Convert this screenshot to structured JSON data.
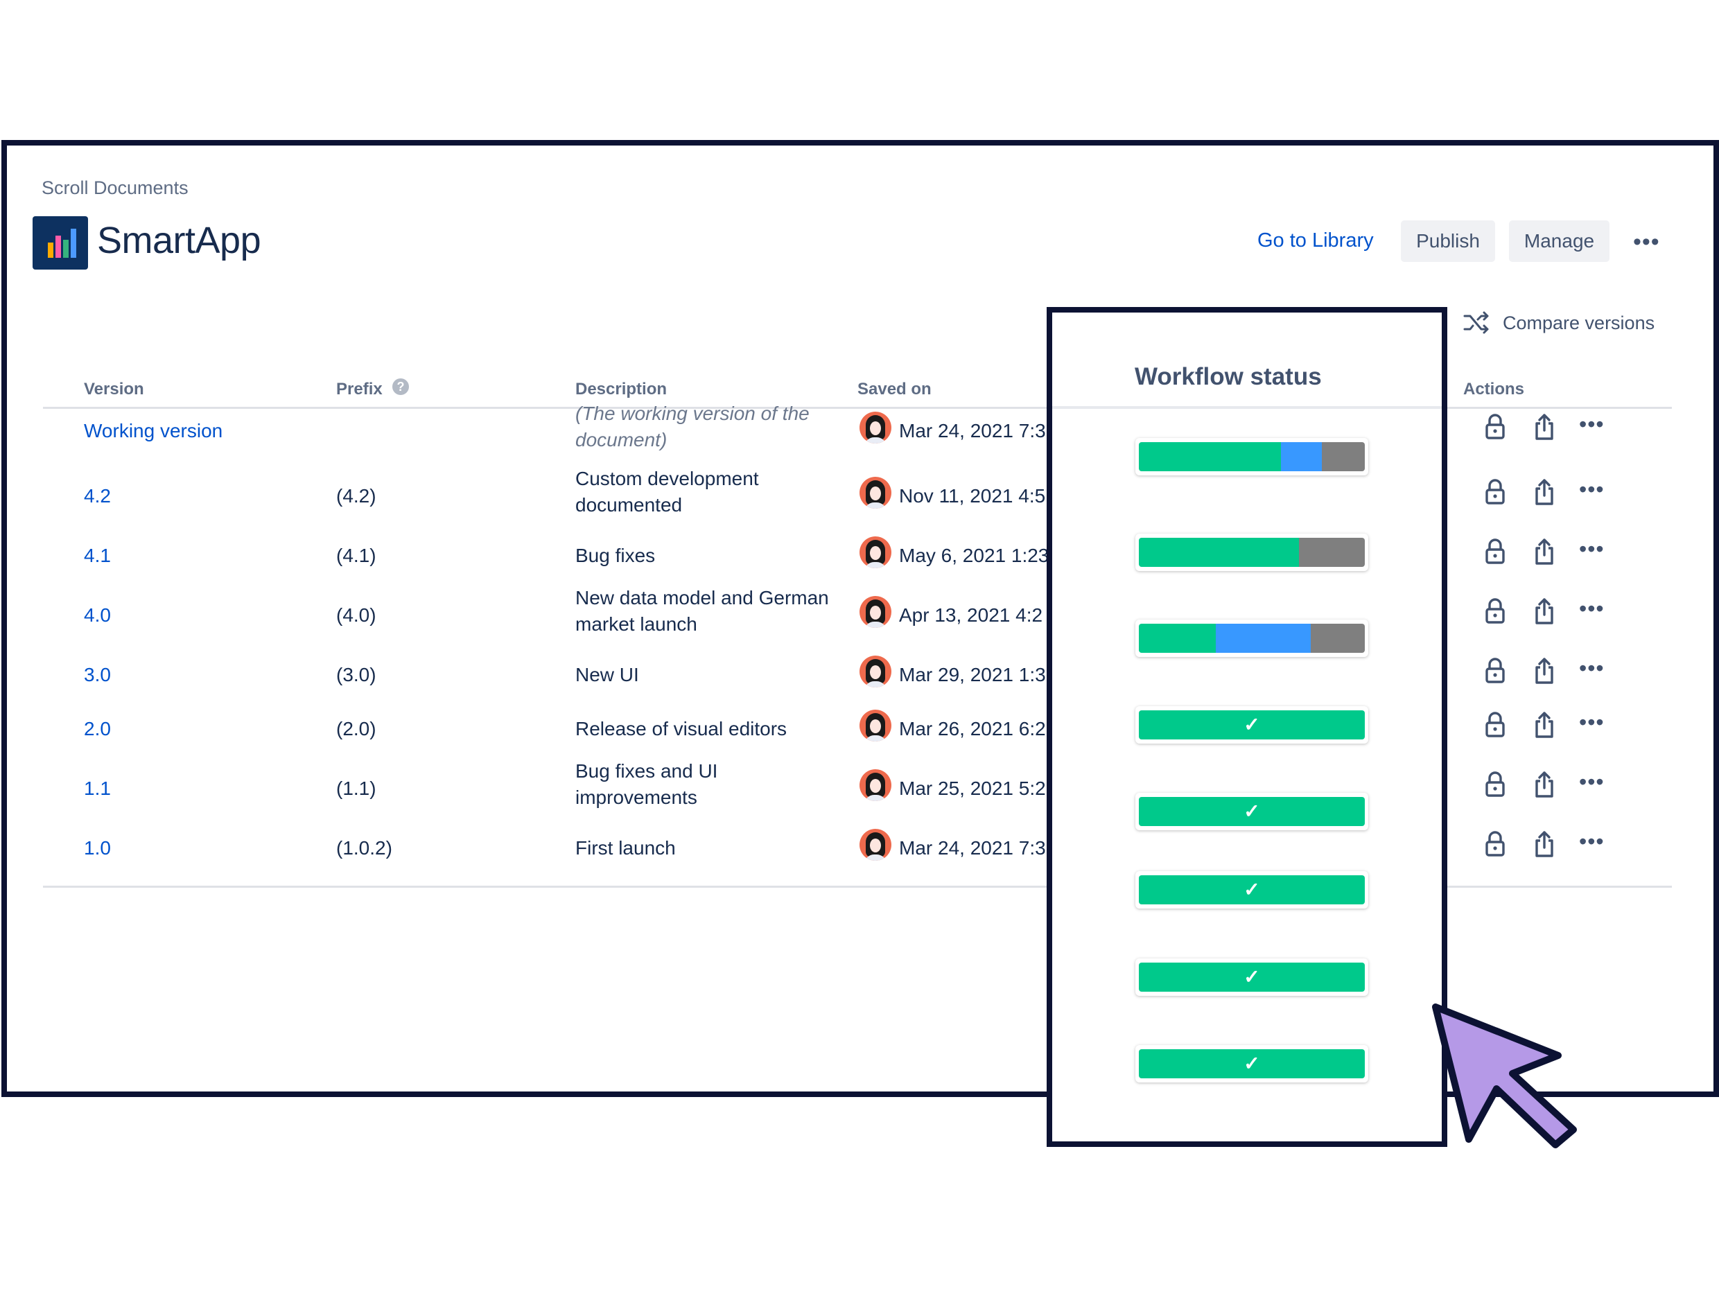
{
  "breadcrumb": "Scroll Documents",
  "app": {
    "title": "SmartApp"
  },
  "header_actions": {
    "go_to_library": "Go to Library",
    "publish": "Publish",
    "manage": "Manage",
    "more": "•••"
  },
  "compare_versions": "Compare versions",
  "table": {
    "headers": {
      "version": "Version",
      "prefix": "Prefix",
      "description": "Description",
      "saved_on": "Saved on",
      "actions": "Actions"
    },
    "rows": [
      {
        "version": "Working version",
        "prefix": "",
        "description": "(The working version of the document)",
        "saved_on": "Mar 24, 2021 7:3"
      },
      {
        "version": "4.2",
        "prefix": "(4.2)",
        "description": "Custom development documented",
        "saved_on": "Nov 11, 2021 4:5"
      },
      {
        "version": "4.1",
        "prefix": "(4.1)",
        "description": "Bug fixes",
        "saved_on": "May 6, 2021 1:23"
      },
      {
        "version": "4.0",
        "prefix": "(4.0)",
        "description": "New data model and German market launch",
        "saved_on": "Apr 13, 2021 4:2"
      },
      {
        "version": "3.0",
        "prefix": "(3.0)",
        "description": "New UI",
        "saved_on": "Mar 29, 2021 1:3"
      },
      {
        "version": "2.0",
        "prefix": "(2.0)",
        "description": "Release of visual editors",
        "saved_on": "Mar 26, 2021 6:2"
      },
      {
        "version": "1.1",
        "prefix": "(1.1)",
        "description": "Bug fixes and UI improvements",
        "saved_on": "Mar 25, 2021 5:2"
      },
      {
        "version": "1.0",
        "prefix": "(1.0.2)",
        "description": "First launch",
        "saved_on": "Mar 24, 2021 7:3"
      }
    ]
  },
  "workflow": {
    "title": "Workflow status",
    "colors": {
      "green": "#00c98b",
      "blue": "#3898ff",
      "gray": "#7f7f7f"
    },
    "bars": [
      {
        "done": 0.63,
        "in_progress": 0.18,
        "todo": 0.19
      },
      {
        "done": 0.71,
        "in_progress": 0.0,
        "todo": 0.29
      },
      {
        "done": 0.34,
        "in_progress": 0.42,
        "todo": 0.24
      },
      {
        "done": 1.0,
        "in_progress": 0.0,
        "todo": 0.0,
        "check": "✓"
      },
      {
        "done": 1.0,
        "in_progress": 0.0,
        "todo": 0.0,
        "check": "✓"
      },
      {
        "done": 1.0,
        "in_progress": 0.0,
        "todo": 0.0,
        "check": "✓"
      },
      {
        "done": 1.0,
        "in_progress": 0.0,
        "todo": 0.0,
        "check": "✓"
      },
      {
        "done": 1.0,
        "in_progress": 0.0,
        "todo": 0.0,
        "check": "✓"
      }
    ]
  },
  "icons": {
    "logo": "bar-chart-logo-icon",
    "help": "question-circle-icon",
    "compare": "shuffle-icon",
    "lock": "lock-icon",
    "share": "share-icon",
    "more": "more-horizontal-icon",
    "cursor": "mouse-cursor-icon"
  }
}
